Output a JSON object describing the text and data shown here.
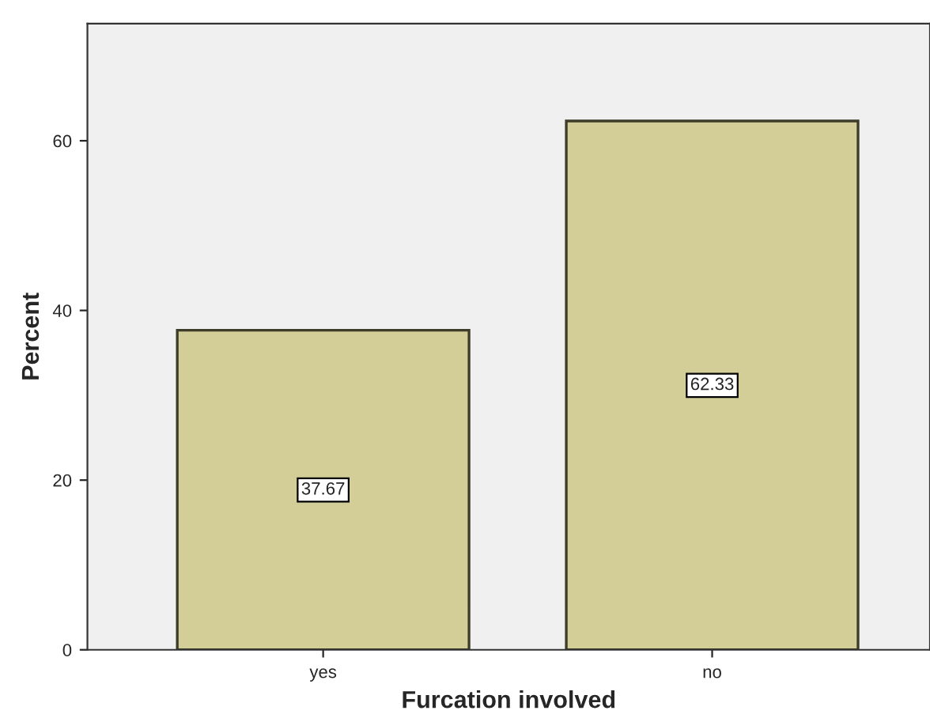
{
  "chart_data": {
    "type": "bar",
    "xlabel": "Furcation involved",
    "ylabel": "Percent",
    "categories": [
      "yes",
      "no"
    ],
    "values": [
      37.67,
      62.33
    ],
    "color": "#d3ce97",
    "ylim": [
      0,
      73.8
    ],
    "yticks": [
      0,
      20,
      40,
      60
    ],
    "grid": false,
    "data_labels": true,
    "legend": false
  }
}
